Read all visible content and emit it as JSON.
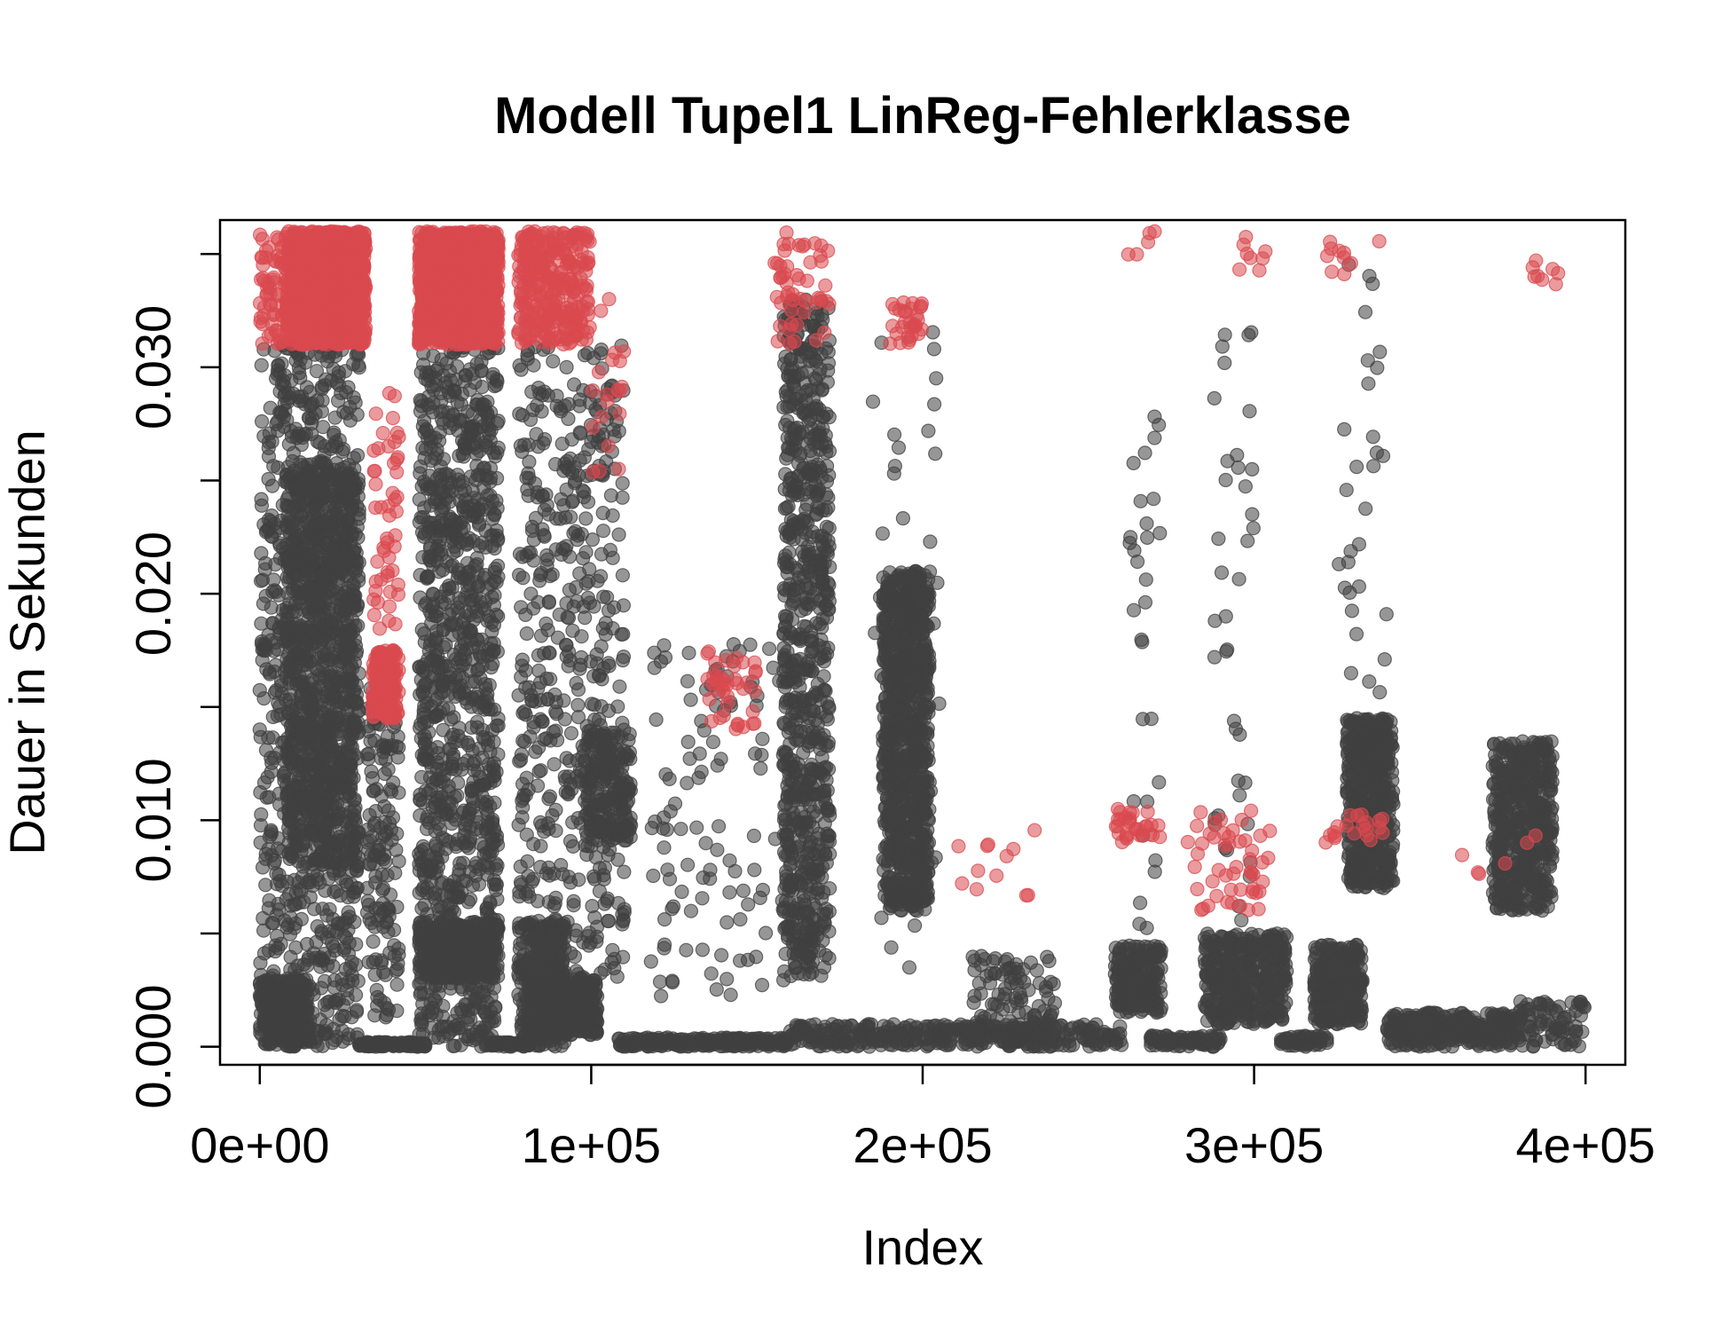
{
  "chart_data": {
    "type": "scatter",
    "title": "Modell Tupel1 LinReg-Fehlerklasse",
    "xlabel": "Index",
    "ylabel": "Dauer in Sekunden",
    "xlim": [
      -12000,
      412000
    ],
    "ylim": [
      -0.0008,
      0.0365
    ],
    "x_ticks": [
      0,
      100000,
      200000,
      300000,
      400000
    ],
    "x_tick_labels": [
      "0e+00",
      "1e+05",
      "2e+05",
      "3e+05",
      "4e+05"
    ],
    "y_ticks": [
      0.0,
      0.005,
      0.01,
      0.015,
      0.02,
      0.025,
      0.03,
      0.035
    ],
    "y_tick_labels": [
      "0.000",
      "",
      "0.010",
      "",
      "0.020",
      "",
      "0.030",
      ""
    ],
    "grid": false,
    "colors": {
      "normal": "#404040",
      "error": "#d9494f"
    },
    "series": [
      {
        "role": "normal",
        "clusters": [
          {
            "x": [
              0,
              30000
            ],
            "y": [
              0.0,
              0.031
            ],
            "n": 900
          },
          {
            "x": [
              0,
              15000
            ],
            "y": [
              0.0,
              0.003
            ],
            "n": 300
          },
          {
            "x": [
              8000,
              30000
            ],
            "y": [
              0.008,
              0.026
            ],
            "n": 900
          },
          {
            "x": [
              30000,
              50000
            ],
            "y": [
              0.0,
              0.0002
            ],
            "n": 120
          },
          {
            "x": [
              32000,
              42000
            ],
            "y": [
              0.001,
              0.016
            ],
            "n": 150
          },
          {
            "x": [
              48000,
              72000
            ],
            "y": [
              0.0,
              0.031
            ],
            "n": 1100
          },
          {
            "x": [
              48000,
              72000
            ],
            "y": [
              0.003,
              0.0055
            ],
            "n": 400
          },
          {
            "x": [
              68000,
              82000
            ],
            "y": [
              0.0,
              0.0002
            ],
            "n": 60
          },
          {
            "x": [
              78000,
              92000
            ],
            "y": [
              0.0,
              0.0055
            ],
            "n": 300
          },
          {
            "x": [
              78000,
              110000
            ],
            "y": [
              0.003,
              0.031
            ],
            "n": 500
          },
          {
            "x": [
              82000,
              102000
            ],
            "y": [
              0.0005,
              0.003
            ],
            "n": 400
          },
          {
            "x": [
              98000,
              112000
            ],
            "y": [
              0.009,
              0.014
            ],
            "n": 200
          },
          {
            "x": [
              108000,
              160000
            ],
            "y": [
              0.0,
              0.0004
            ],
            "n": 250
          },
          {
            "x": [
              118000,
              160000
            ],
            "y": [
              0.002,
              0.018
            ],
            "n": 120
          },
          {
            "x": [
              158000,
              172000
            ],
            "y": [
              0.003,
              0.033
            ],
            "n": 800
          },
          {
            "x": [
              160000,
              200000
            ],
            "y": [
              0.0,
              0.001
            ],
            "n": 150
          },
          {
            "x": [
              188000,
              202000
            ],
            "y": [
              0.006,
              0.021
            ],
            "n": 900
          },
          {
            "x": [
              185000,
              205000
            ],
            "y": [
              0.003,
              0.033
            ],
            "n": 60
          },
          {
            "x": [
              200000,
              260000
            ],
            "y": [
              0.0,
              0.001
            ],
            "n": 200
          },
          {
            "x": [
              215000,
              240000
            ],
            "y": [
              0.0,
              0.004
            ],
            "n": 120
          },
          {
            "x": [
              258000,
              272000
            ],
            "y": [
              0.0015,
              0.0045
            ],
            "n": 200
          },
          {
            "x": [
              262000,
              272000
            ],
            "y": [
              0.005,
              0.028
            ],
            "n": 30
          },
          {
            "x": [
              268000,
              290000
            ],
            "y": [
              0.0,
              0.0005
            ],
            "n": 80
          },
          {
            "x": [
              285000,
              310000
            ],
            "y": [
              0.001,
              0.005
            ],
            "n": 400
          },
          {
            "x": [
              288000,
              300000
            ],
            "y": [
              0.005,
              0.033
            ],
            "n": 40
          },
          {
            "x": [
              308000,
              322000
            ],
            "y": [
              0.0,
              0.0005
            ],
            "n": 60
          },
          {
            "x": [
              318000,
              333000
            ],
            "y": [
              0.001,
              0.0045
            ],
            "n": 300
          },
          {
            "x": [
              328000,
              342000
            ],
            "y": [
              0.007,
              0.0145
            ],
            "n": 500
          },
          {
            "x": [
              325000,
              340000
            ],
            "y": [
              0.015,
              0.035
            ],
            "n": 30
          },
          {
            "x": [
              340000,
              380000
            ],
            "y": [
              0.0,
              0.0015
            ],
            "n": 300
          },
          {
            "x": [
              372000,
              390000
            ],
            "y": [
              0.006,
              0.0135
            ],
            "n": 500
          },
          {
            "x": [
              380000,
              400000
            ],
            "y": [
              0.0,
              0.002
            ],
            "n": 80
          }
        ]
      },
      {
        "role": "error",
        "clusters": [
          {
            "x": [
              0,
              8000
            ],
            "y": [
              0.031,
              0.036
            ],
            "n": 60
          },
          {
            "x": [
              8000,
              32000
            ],
            "y": [
              0.031,
              0.036
            ],
            "n": 1200
          },
          {
            "x": [
              34000,
              42000
            ],
            "y": [
              0.0145,
              0.0175
            ],
            "n": 200
          },
          {
            "x": [
              34000,
              42000
            ],
            "y": [
              0.018,
              0.029
            ],
            "n": 50
          },
          {
            "x": [
              48000,
              72000
            ],
            "y": [
              0.031,
              0.036
            ],
            "n": 1500
          },
          {
            "x": [
              78000,
              100000
            ],
            "y": [
              0.031,
              0.036
            ],
            "n": 300
          },
          {
            "x": [
              100000,
              110000
            ],
            "y": [
              0.025,
              0.034
            ],
            "n": 20
          },
          {
            "x": [
              135000,
              150000
            ],
            "y": [
              0.014,
              0.0175
            ],
            "n": 40
          },
          {
            "x": [
              155000,
              172000
            ],
            "y": [
              0.031,
              0.036
            ],
            "n": 50
          },
          {
            "x": [
              190000,
              200000
            ],
            "y": [
              0.031,
              0.033
            ],
            "n": 30
          },
          {
            "x": [
              210000,
              235000
            ],
            "y": [
              0.006,
              0.01
            ],
            "n": 12
          },
          {
            "x": [
              258000,
              272000
            ],
            "y": [
              0.009,
              0.0105
            ],
            "n": 30
          },
          {
            "x": [
              262000,
              270000
            ],
            "y": [
              0.034,
              0.036
            ],
            "n": 5
          },
          {
            "x": [
              280000,
              305000
            ],
            "y": [
              0.006,
              0.0105
            ],
            "n": 50
          },
          {
            "x": [
              290000,
              305000
            ],
            "y": [
              0.034,
              0.036
            ],
            "n": 8
          },
          {
            "x": [
              320000,
              340000
            ],
            "y": [
              0.009,
              0.0105
            ],
            "n": 20
          },
          {
            "x": [
              322000,
              340000
            ],
            "y": [
              0.034,
              0.036
            ],
            "n": 10
          },
          {
            "x": [
              360000,
              385000
            ],
            "y": [
              0.007,
              0.0095
            ],
            "n": 6
          },
          {
            "x": [
              380000,
              392000
            ],
            "y": [
              0.033,
              0.036
            ],
            "n": 8
          }
        ]
      }
    ]
  }
}
